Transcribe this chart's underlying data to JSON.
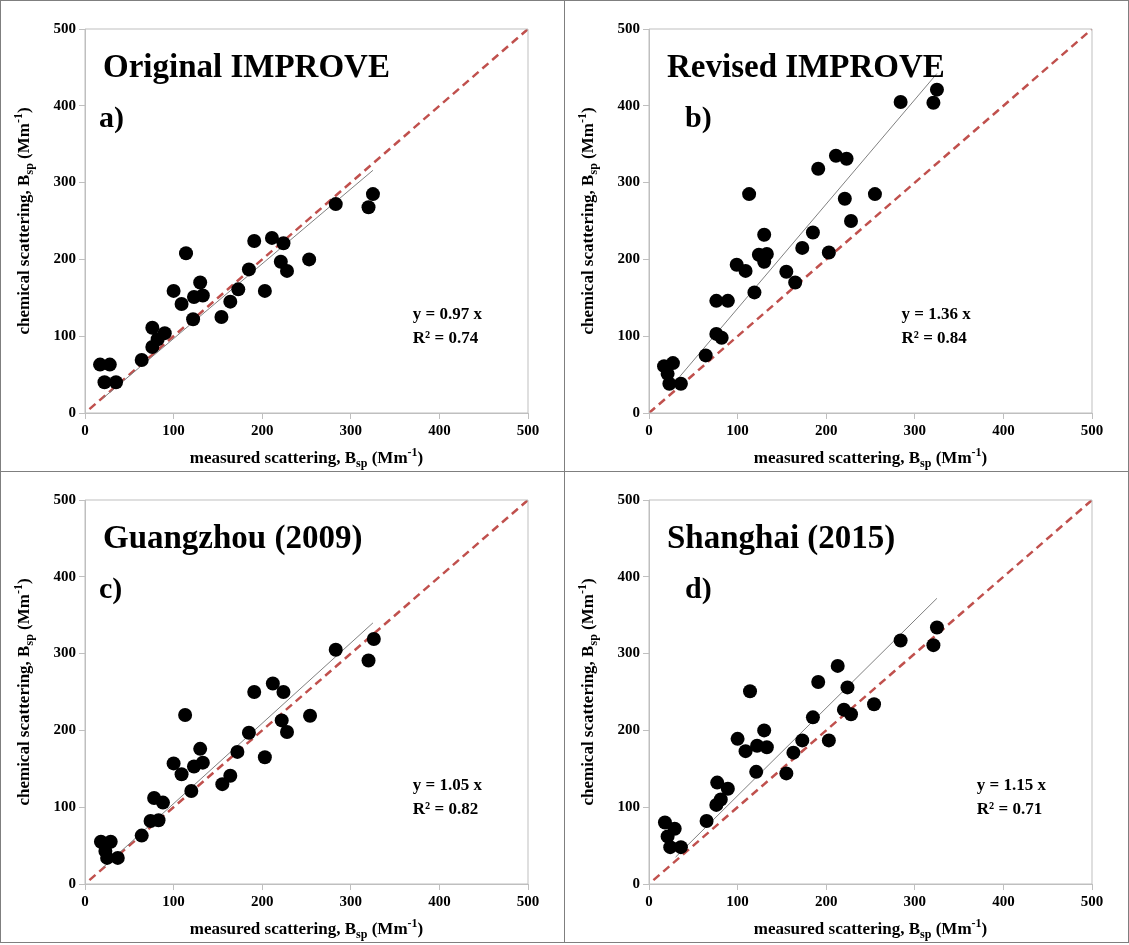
{
  "chart_data": [
    {
      "type": "scatter",
      "title": "Original IMPROVE",
      "xlabel": "measured scattering, B$_{sp}$ (Mm$^{-1}$)",
      "ylabel": "chemical scattering, B$_{sp}$ (Mm$^{-1}$)",
      "annotations": [
        "a)",
        "y = 0.97 x",
        "R² = 0.74"
      ],
      "xlim": [
        0,
        500
      ],
      "ylim": [
        0,
        500
      ],
      "xticks": [
        0,
        100,
        200,
        300,
        400,
        500
      ],
      "yticks": [
        0,
        100,
        200,
        300,
        400,
        500
      ],
      "series": [
        {
          "type": "scatter",
          "color": "#000000",
          "marker": "circle",
          "x": [
            17,
            28,
            22,
            35,
            64,
            76,
            76,
            90,
            82,
            100,
            109,
            114,
            122,
            123,
            130,
            133,
            154,
            164,
            173,
            185,
            191,
            203,
            211,
            224,
            221,
            228,
            253,
            283,
            320,
            325
          ],
          "values": [
            63,
            63,
            40,
            40,
            69,
            111,
            86,
            104,
            96,
            159,
            142,
            208,
            122,
            151,
            170,
            153,
            125,
            145,
            161,
            187,
            224,
            159,
            228,
            221,
            197,
            185,
            200,
            272,
            268,
            285
          ]
        },
        {
          "type": "line",
          "color": "#808080",
          "line_style": "solid",
          "marker": "none",
          "x": [
            20,
            325
          ],
          "values": [
            19,
            316
          ]
        },
        {
          "type": "line",
          "color": "#c0504d",
          "line_style": "dashed",
          "marker": "none",
          "x": [
            5,
            500
          ],
          "values": [
            5,
            500
          ]
        }
      ]
    },
    {
      "type": "scatter",
      "title": "Revised IMPROVE",
      "xlabel": "measured scattering, B$_{sp}$ (Mm$^{-1}$)",
      "ylabel": "chemical scattering, B$_{sp}$ (Mm$^{-1}$)",
      "annotations": [
        "b)",
        "y = 1.36 x",
        "R² = 0.84"
      ],
      "xlim": [
        0,
        500
      ],
      "ylim": [
        0,
        500
      ],
      "xticks": [
        0,
        100,
        200,
        300,
        400,
        500
      ],
      "yticks": [
        0,
        100,
        200,
        300,
        400,
        500
      ],
      "series": [
        {
          "type": "scatter",
          "color": "#000000",
          "marker": "circle",
          "x": [
            17,
            27,
            21,
            23,
            36,
            64,
            76,
            89,
            76,
            82,
            99,
            109,
            113,
            119,
            124,
            130,
            130,
            133,
            155,
            165,
            173,
            185,
            191,
            203,
            211,
            223,
            221,
            228,
            255,
            284,
            321,
            325
          ],
          "values": [
            61,
            65,
            51,
            38,
            38,
            75,
            146,
            146,
            103,
            98,
            193,
            185,
            285,
            157,
            206,
            232,
            197,
            207,
            184,
            170,
            215,
            235,
            318,
            209,
            335,
            331,
            279,
            250,
            285,
            405,
            404,
            421
          ]
        },
        {
          "type": "line",
          "color": "#808080",
          "line_style": "solid",
          "marker": "none",
          "x": [
            30,
            325
          ],
          "values": [
            41,
            442
          ]
        },
        {
          "type": "line",
          "color": "#c0504d",
          "line_style": "dashed",
          "marker": "none",
          "x": [
            0,
            500
          ],
          "values": [
            0,
            500
          ]
        }
      ]
    },
    {
      "type": "scatter",
      "title": "Guangzhou (2009)",
      "xlabel": "measured scattering, B$_{sp}$ (Mm$^{-1}$)",
      "ylabel": "chemical scattering, B$_{sp}$ (Mm$^{-1}$)",
      "annotations": [
        "c)",
        "y = 1.05 x",
        "R² = 0.82"
      ],
      "xlim": [
        0,
        500
      ],
      "ylim": [
        0,
        500
      ],
      "xticks": [
        0,
        100,
        200,
        300,
        400,
        500
      ],
      "yticks": [
        0,
        100,
        200,
        300,
        400,
        500
      ],
      "series": [
        {
          "type": "scatter",
          "color": "#000000",
          "marker": "circle",
          "x": [
            18,
            29,
            23,
            25,
            37,
            64,
            78,
            88,
            74,
            83,
            100,
            109,
            113,
            120,
            123,
            130,
            133,
            155,
            164,
            172,
            185,
            191,
            203,
            212,
            224,
            222,
            228,
            254,
            283,
            320,
            326
          ],
          "values": [
            55,
            55,
            43,
            34,
            34,
            63,
            112,
            106,
            82,
            83,
            157,
            143,
            220,
            121,
            153,
            176,
            158,
            130,
            141,
            172,
            197,
            250,
            165,
            261,
            250,
            213,
            198,
            219,
            305,
            291,
            319
          ]
        },
        {
          "type": "line",
          "color": "#808080",
          "line_style": "solid",
          "marker": "none",
          "x": [
            20,
            325
          ],
          "values": [
            21,
            340
          ]
        },
        {
          "type": "line",
          "color": "#c0504d",
          "line_style": "dashed",
          "marker": "none",
          "x": [
            5,
            500
          ],
          "values": [
            5,
            500
          ]
        }
      ]
    },
    {
      "type": "scatter",
      "title": "Shanghai (2015)",
      "xlabel": "measured scattering, B$_{sp}$ (Mm$^{-1}$)",
      "ylabel": "chemical scattering, B$_{sp}$ (Mm$^{-1}$)",
      "annotations": [
        "d)",
        "y = 1.15 x",
        "R² = 0.71"
      ],
      "xlim": [
        0,
        500
      ],
      "ylim": [
        0,
        500
      ],
      "xticks": [
        0,
        100,
        200,
        300,
        400,
        500
      ],
      "yticks": [
        0,
        100,
        200,
        300,
        400,
        500
      ],
      "series": [
        {
          "type": "scatter",
          "color": "#000000",
          "marker": "circle",
          "x": [
            18,
            29,
            21,
            24,
            36,
            65,
            77,
            89,
            76,
            81,
            100,
            109,
            114,
            121,
            122,
            130,
            133,
            155,
            163,
            173,
            185,
            191,
            203,
            213,
            224,
            220,
            228,
            254,
            284,
            321,
            325
          ],
          "values": [
            80,
            72,
            62,
            48,
            48,
            82,
            132,
            124,
            103,
            110,
            189,
            173,
            251,
            146,
            180,
            200,
            178,
            144,
            171,
            187,
            217,
            263,
            187,
            284,
            256,
            227,
            221,
            234,
            317,
            311,
            334
          ]
        },
        {
          "type": "line",
          "color": "#808080",
          "line_style": "solid",
          "marker": "none",
          "x": [
            30,
            325
          ],
          "values": [
            35,
            372
          ]
        },
        {
          "type": "line",
          "color": "#c0504d",
          "line_style": "dashed",
          "marker": "none",
          "x": [
            5,
            500
          ],
          "values": [
            5,
            500
          ]
        }
      ]
    }
  ]
}
